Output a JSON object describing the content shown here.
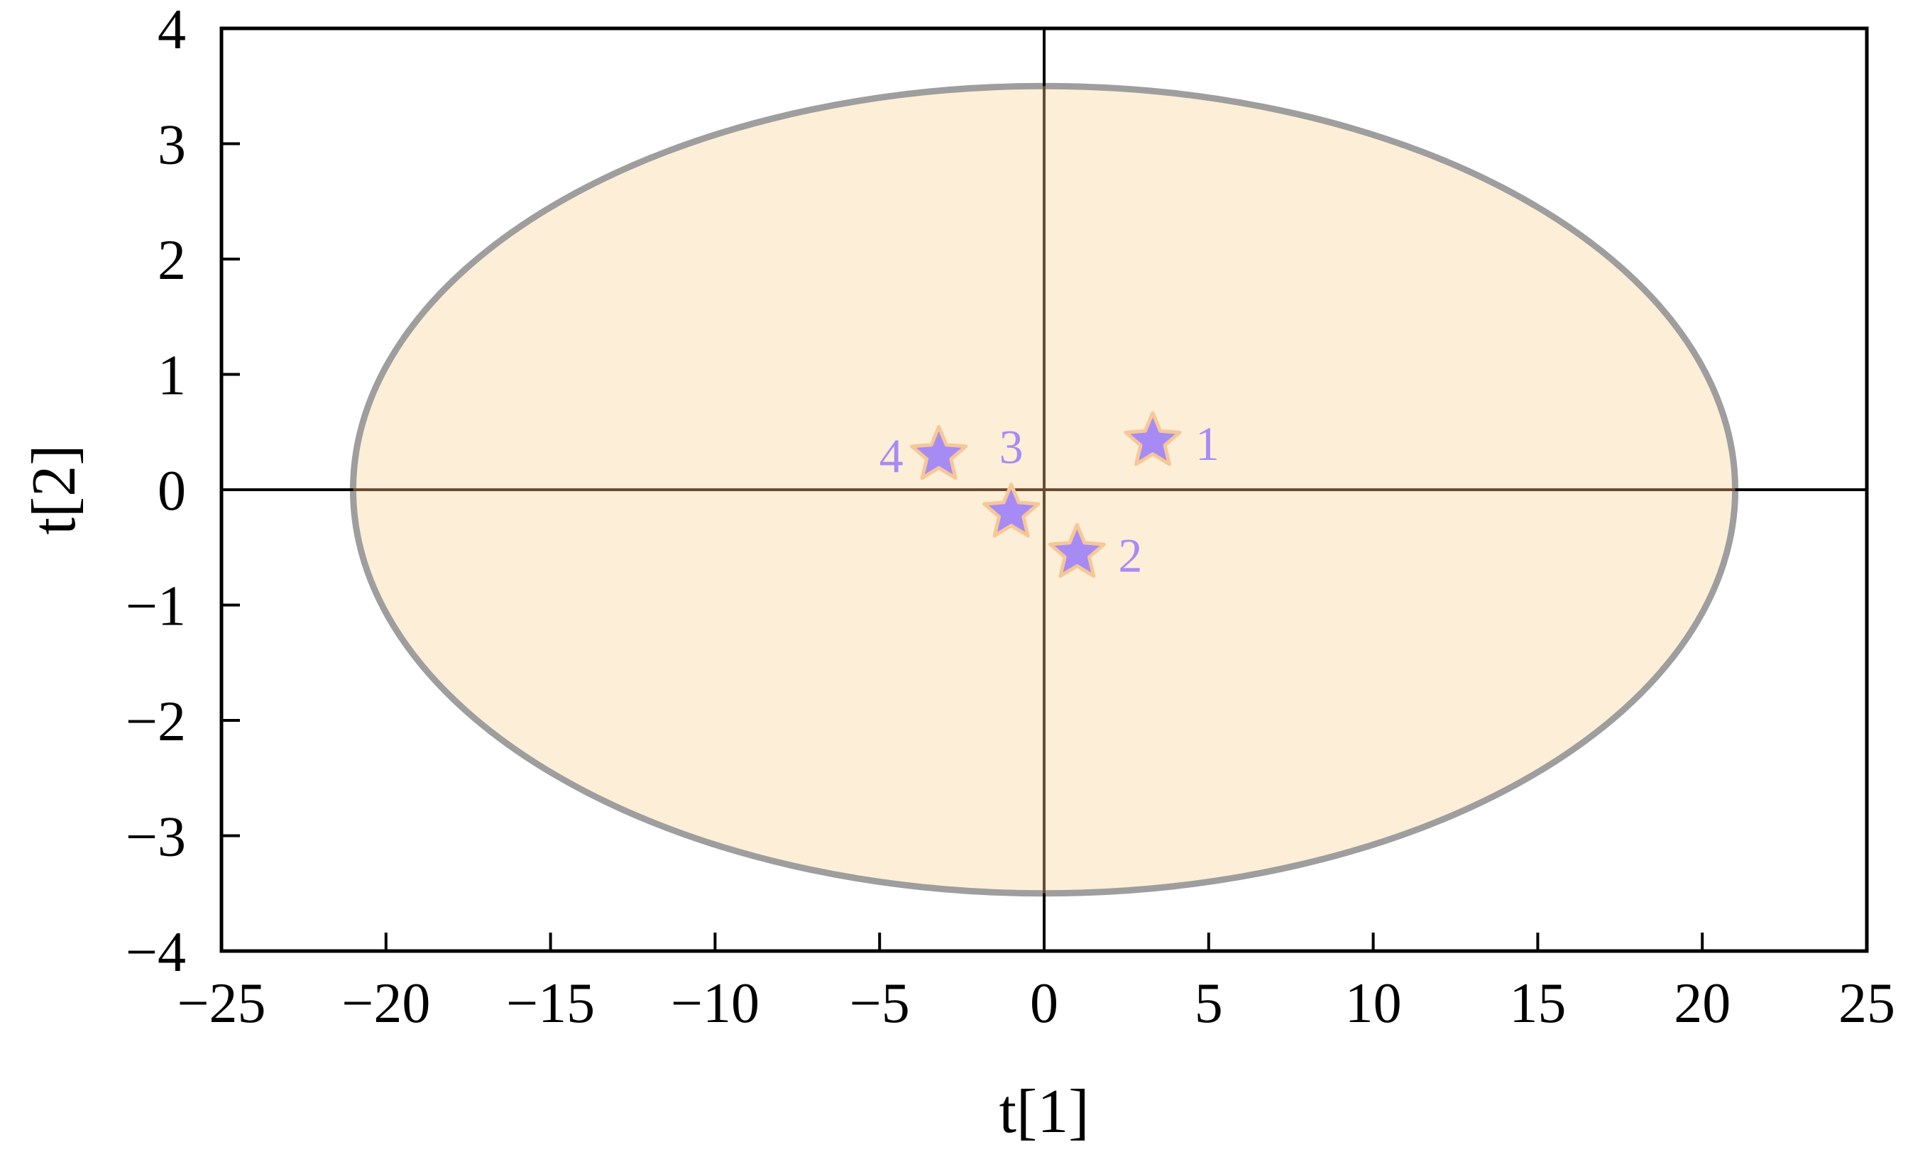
{
  "chart_data": {
    "type": "scatter",
    "title": "",
    "xlabel": "t[1]",
    "ylabel": "t[2]",
    "xlim": [
      -25,
      25
    ],
    "ylim": [
      -4,
      4
    ],
    "x_ticks": [
      -25,
      -20,
      -15,
      -10,
      -5,
      0,
      5,
      10,
      15,
      20,
      25
    ],
    "y_ticks": [
      -4,
      -3,
      -2,
      -1,
      0,
      1,
      2,
      3,
      4
    ],
    "x_tick_labels": [
      "−25",
      "−20",
      "−15",
      "−10",
      "−5",
      "0",
      "5",
      "10",
      "15",
      "20",
      "25"
    ],
    "y_tick_labels": [
      "−4",
      "−3",
      "−2",
      "−1",
      "0",
      "1",
      "2",
      "3",
      "4"
    ],
    "grid": false,
    "confidence_ellipse": {
      "cx": 0,
      "cy": 0,
      "rx": 21,
      "ry": 3.5
    },
    "points": [
      {
        "label": "1",
        "x": 3.3,
        "y": 0.42
      },
      {
        "label": "2",
        "x": 1.0,
        "y": -0.55
      },
      {
        "label": "3",
        "x": -1.0,
        "y": -0.2
      },
      {
        "label": "4",
        "x": -3.2,
        "y": 0.3
      }
    ],
    "colors": {
      "ellipse_fill": "#fdeed7",
      "ellipse_stroke": "#9e9e9e",
      "point_fill": "#a78bf5",
      "point_stroke": "#f6c896",
      "label_color": "#a78bf5",
      "zero_line_inside": "#6b4a32",
      "axis_color": "#000000"
    }
  }
}
